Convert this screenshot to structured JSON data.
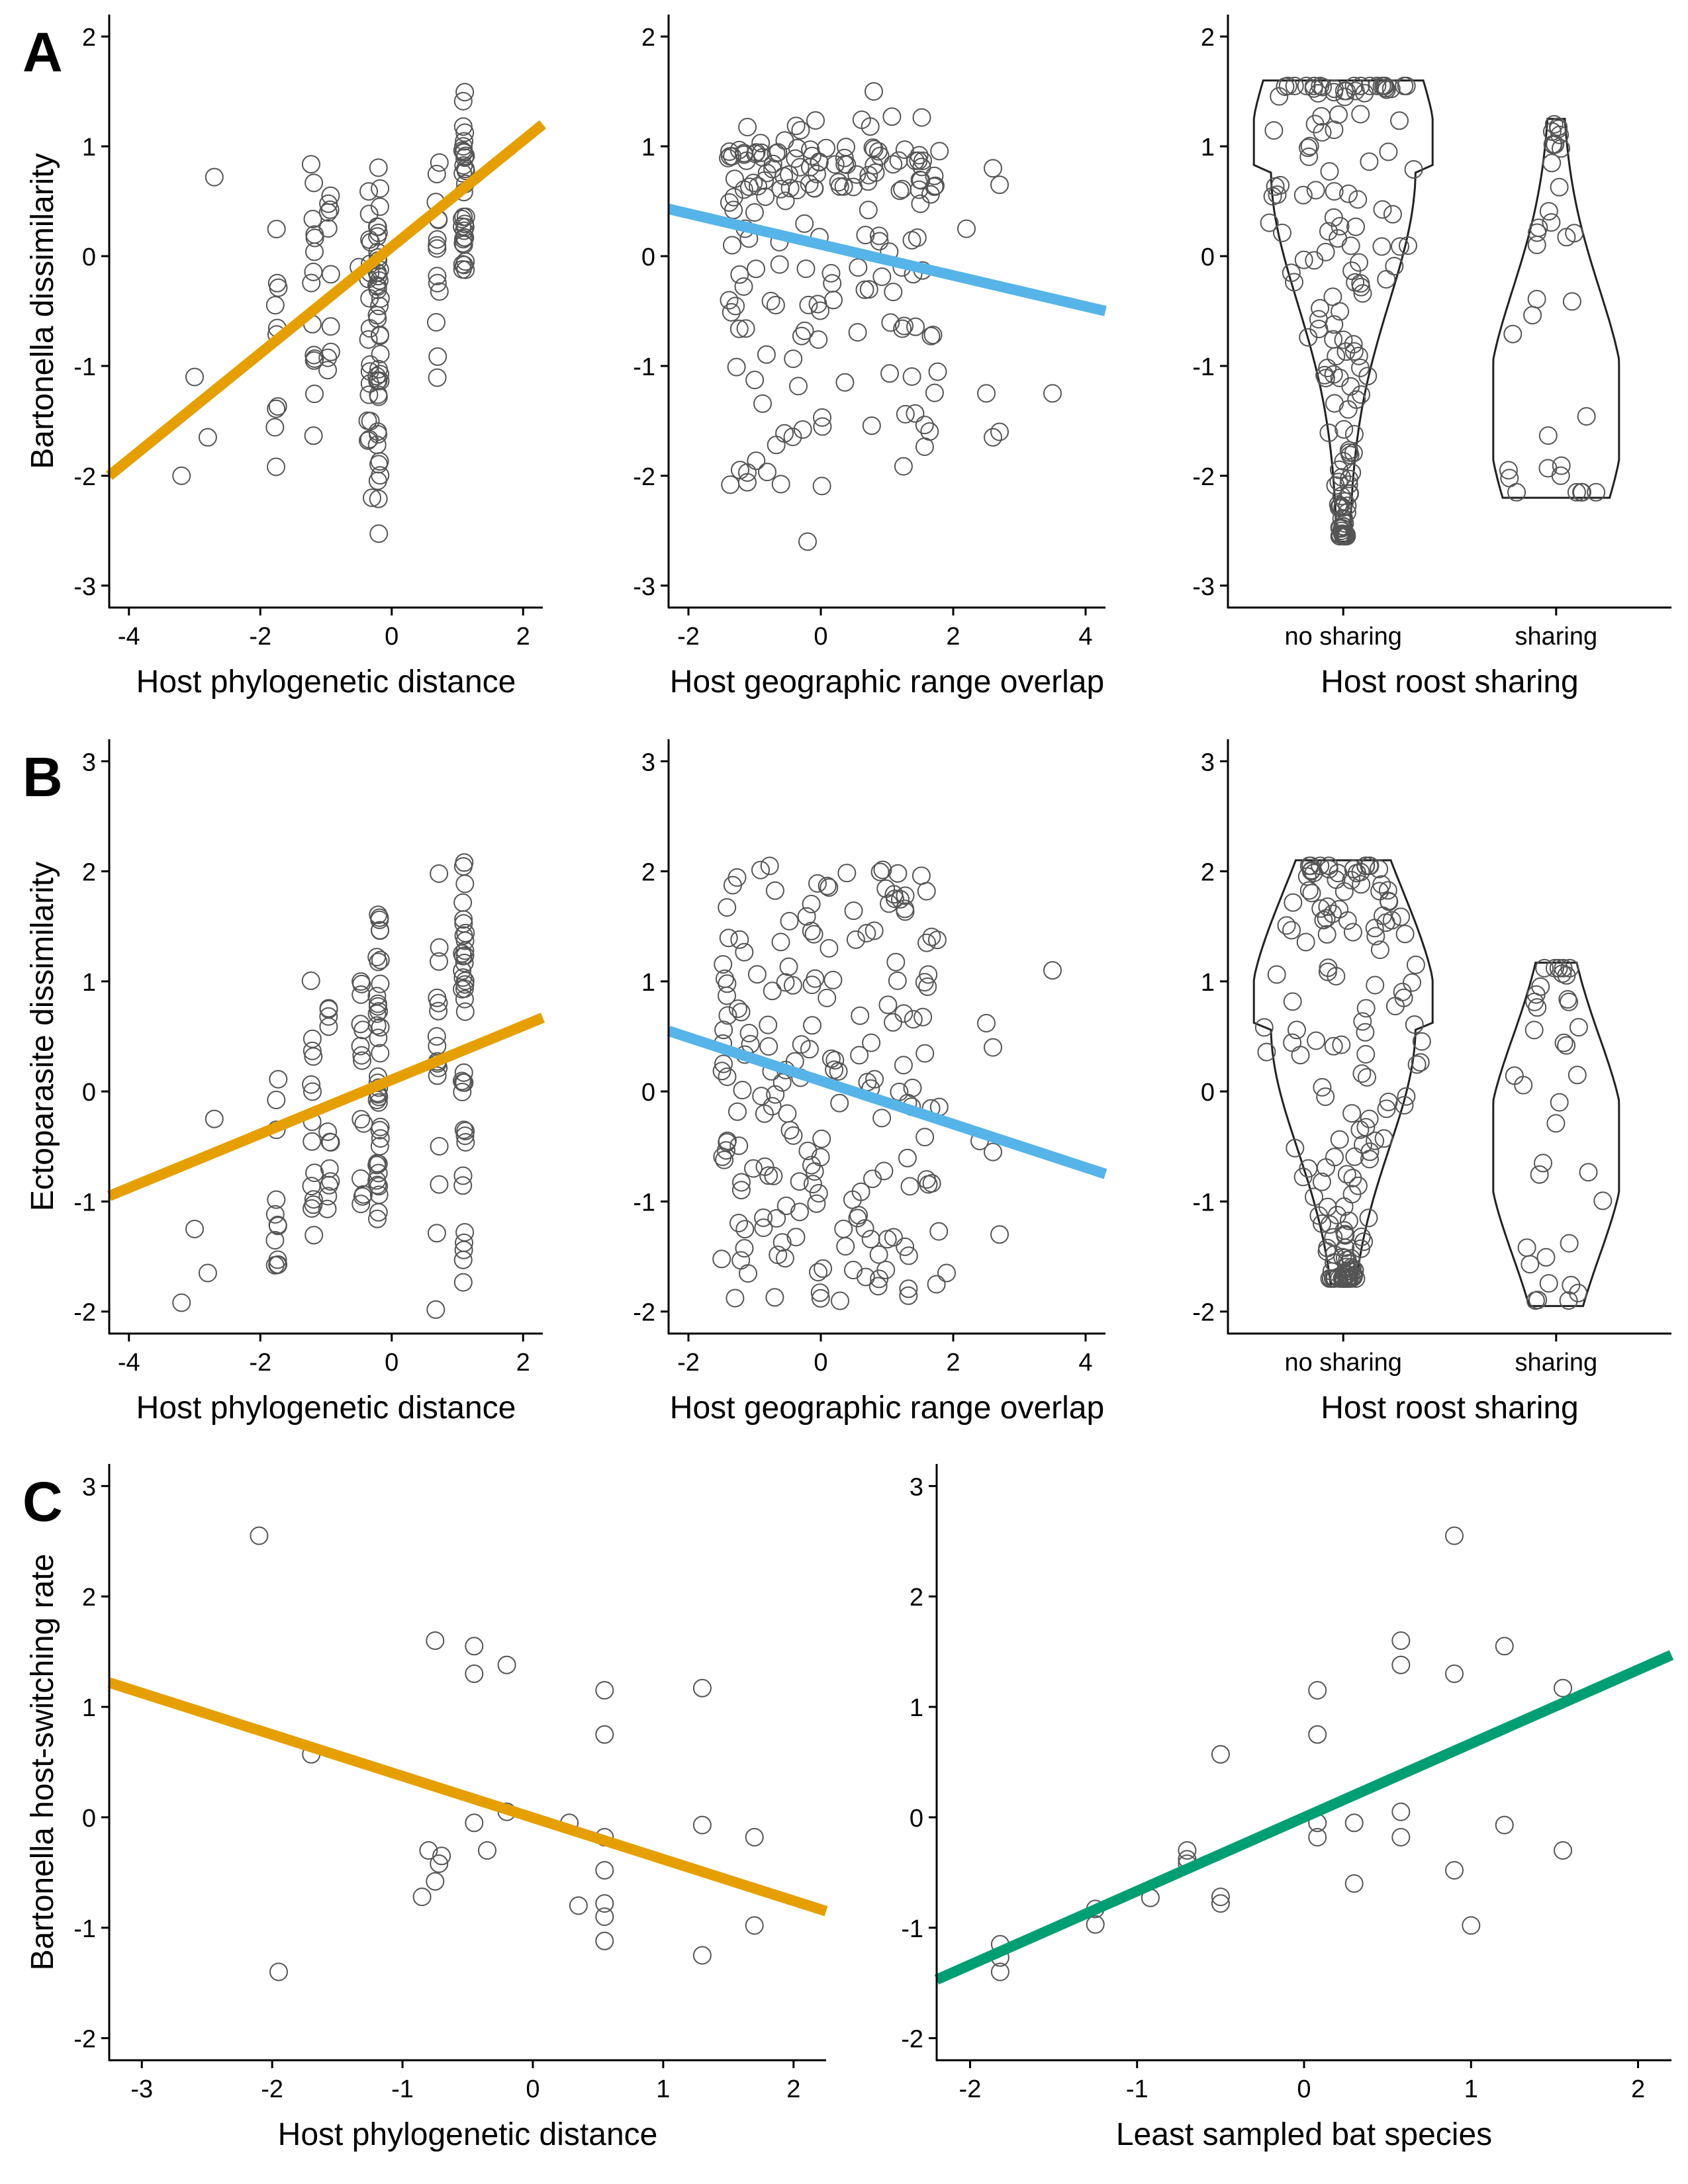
{
  "panels": {
    "A": "A",
    "B": "B",
    "C": "C"
  },
  "colors": {
    "phylo": "#E69F00",
    "geo": "#56B4E9",
    "sampling": "#009E73",
    "point": "#555555",
    "axis": "#000000"
  },
  "chart_data": [
    {
      "id": "A1",
      "type": "scatter",
      "xlabel": "Host phylogenetic distance",
      "ylabel": "Bartonella dissimilarity",
      "xlim": [
        -4.3,
        2.3
      ],
      "ylim": [
        -3.2,
        2.2
      ],
      "xticks": [
        -4,
        -2,
        0,
        2
      ],
      "yticks": [
        -3,
        -2,
        -1,
        0,
        1,
        2
      ],
      "trend": {
        "color": "phylo",
        "x": [
          -4.3,
          2.3
        ],
        "y": [
          -2.0,
          1.2
        ]
      },
      "columns": [
        {
          "x": -0.2,
          "n": 42,
          "ymin": -2.6,
          "ymax": 0.9
        },
        {
          "x": -0.35,
          "n": 18,
          "ymin": -1.7,
          "ymax": 0.6
        },
        {
          "x": 1.1,
          "n": 34,
          "ymin": -0.3,
          "ymax": 1.55
        },
        {
          "x": 0.7,
          "n": 14,
          "ymin": -1.2,
          "ymax": 1.0
        },
        {
          "x": -1.2,
          "n": 14,
          "ymin": -1.7,
          "ymax": 0.9
        },
        {
          "x": -0.95,
          "n": 10,
          "ymin": -1.4,
          "ymax": 0.95
        },
        {
          "x": -1.75,
          "n": 10,
          "ymin": -2.1,
          "ymax": 0.8
        }
      ],
      "points": [
        [
          -3.2,
          -2.0
        ],
        [
          -3.0,
          -1.1
        ],
        [
          -2.8,
          -1.65
        ],
        [
          -2.7,
          0.72
        ],
        [
          -0.3,
          -2.2
        ],
        [
          -0.5,
          -0.1
        ]
      ]
    },
    {
      "id": "A2",
      "type": "scatter",
      "xlabel": "Host geographic range overlap",
      "ylabel": "",
      "xlim": [
        -2.3,
        4.3
      ],
      "ylim": [
        -3.2,
        2.2
      ],
      "xticks": [
        -2,
        0,
        2,
        4
      ],
      "yticks": [
        -3,
        -2,
        -1,
        0,
        1,
        2
      ],
      "trend": {
        "color": "geo",
        "x": [
          -2.3,
          4.3
        ],
        "y": [
          0.43,
          -0.5
        ]
      },
      "cloud": {
        "n": 175,
        "xmin": -1.4,
        "xmax": 1.8,
        "ymin": -2.1,
        "ymax": 1.3,
        "dense_band": [
          0.6,
          1.0
        ]
      },
      "points": [
        [
          -0.2,
          -2.6
        ],
        [
          2.5,
          -1.25
        ],
        [
          2.6,
          -1.65
        ],
        [
          2.7,
          -1.6
        ],
        [
          3.5,
          -1.25
        ],
        [
          2.6,
          0.8
        ],
        [
          2.7,
          0.65
        ],
        [
          0.8,
          1.5
        ],
        [
          2.2,
          0.25
        ]
      ]
    },
    {
      "id": "A3",
      "type": "violin",
      "xlabel": "Host roost sharing",
      "ylabel": "",
      "categories": [
        "no sharing",
        "sharing"
      ],
      "ylim": [
        -3.2,
        2.2
      ],
      "yticks": [
        -3,
        -2,
        -1,
        0,
        1,
        2
      ],
      "groups": [
        {
          "name": "no sharing",
          "n": 160,
          "ymin": -2.6,
          "ymax": 1.6,
          "mode": 0.8
        },
        {
          "name": "sharing",
          "n": 34,
          "ymin": -2.2,
          "ymax": 1.25,
          "mode": -1.4
        }
      ]
    },
    {
      "id": "B1",
      "type": "scatter",
      "xlabel": "Host phylogenetic distance",
      "ylabel": "Ectoparasite dissimilarity",
      "xlim": [
        -4.3,
        2.3
      ],
      "ylim": [
        -2.2,
        3.2
      ],
      "xticks": [
        -4,
        -2,
        0,
        2
      ],
      "yticks": [
        -2,
        -1,
        0,
        1,
        2,
        3
      ],
      "trend": {
        "color": "phylo",
        "x": [
          -4.3,
          2.3
        ],
        "y": [
          -0.95,
          0.67
        ]
      },
      "columns": [
        {
          "x": -0.2,
          "n": 40,
          "ymin": -1.2,
          "ymax": 1.65
        },
        {
          "x": -0.45,
          "n": 14,
          "ymin": -1.2,
          "ymax": 1.0
        },
        {
          "x": 1.1,
          "n": 38,
          "ymin": -1.8,
          "ymax": 2.1
        },
        {
          "x": 0.7,
          "n": 16,
          "ymin": -2.0,
          "ymax": 2.0
        },
        {
          "x": -1.2,
          "n": 14,
          "ymin": -1.8,
          "ymax": 1.05
        },
        {
          "x": -0.95,
          "n": 12,
          "ymin": -1.3,
          "ymax": 0.85
        },
        {
          "x": -1.75,
          "n": 12,
          "ymin": -1.85,
          "ymax": 0.15
        }
      ],
      "points": [
        [
          -3.2,
          -1.92
        ],
        [
          -3.0,
          -1.25
        ],
        [
          -2.8,
          -1.65
        ],
        [
          -2.7,
          -0.25
        ]
      ]
    },
    {
      "id": "B2",
      "type": "scatter",
      "xlabel": "Host geographic range overlap",
      "ylabel": "",
      "xlim": [
        -2.3,
        4.3
      ],
      "ylim": [
        -2.2,
        3.2
      ],
      "xticks": [
        -2,
        0,
        2,
        4
      ],
      "yticks": [
        -2,
        -1,
        0,
        1,
        2,
        3
      ],
      "trend": {
        "color": "geo",
        "x": [
          -2.3,
          4.3
        ],
        "y": [
          0.55,
          -0.75
        ]
      },
      "cloud": {
        "n": 185,
        "xmin": -1.5,
        "xmax": 1.8,
        "ymin": -1.95,
        "ymax": 2.1
      },
      "points": [
        [
          2.4,
          -0.45
        ],
        [
          2.5,
          0.62
        ],
        [
          2.6,
          0.4
        ],
        [
          2.6,
          -0.55
        ],
        [
          2.7,
          -1.3
        ],
        [
          3.5,
          1.1
        ],
        [
          1.9,
          -1.65
        ],
        [
          1.6,
          1.35
        ]
      ]
    },
    {
      "id": "B3",
      "type": "violin",
      "xlabel": "Host roost sharing",
      "ylabel": "",
      "categories": [
        "no sharing",
        "sharing"
      ],
      "ylim": [
        -2.2,
        3.2
      ],
      "yticks": [
        -2,
        -1,
        0,
        1,
        2,
        3
      ],
      "groups": [
        {
          "name": "no sharing",
          "n": 165,
          "ymin": -1.75,
          "ymax": 2.1,
          "mode": 0.6
        },
        {
          "name": "sharing",
          "n": 36,
          "ymin": -1.95,
          "ymax": 1.17,
          "mode": -0.5
        }
      ]
    },
    {
      "id": "C1",
      "type": "scatter",
      "xlabel": "Host phylogenetic distance",
      "ylabel": "Bartonella host-switching rate",
      "xlim": [
        -3.25,
        2.25
      ],
      "ylim": [
        -2.2,
        3.2
      ],
      "xticks": [
        -3,
        -2,
        -1,
        0,
        1,
        2
      ],
      "yticks": [
        -2,
        -1,
        0,
        1,
        2,
        3
      ],
      "trend": {
        "color": "phylo",
        "x": [
          -3.25,
          2.25
        ],
        "y": [
          1.22,
          -0.85
        ]
      },
      "points": [
        [
          -2.1,
          2.55
        ],
        [
          -1.95,
          -1.4
        ],
        [
          -1.7,
          0.57
        ],
        [
          -0.85,
          -0.72
        ],
        [
          -0.8,
          -0.3
        ],
        [
          -0.75,
          -0.58
        ],
        [
          -0.75,
          1.6
        ],
        [
          -0.7,
          -0.35
        ],
        [
          -0.72,
          -0.42
        ],
        [
          -0.45,
          1.55
        ],
        [
          -0.45,
          1.3
        ],
        [
          -0.45,
          -0.05
        ],
        [
          -0.35,
          -0.3
        ],
        [
          -0.2,
          0.05
        ],
        [
          -0.2,
          1.38
        ],
        [
          0.28,
          -0.05
        ],
        [
          0.35,
          -0.8
        ],
        [
          0.55,
          1.15
        ],
        [
          0.55,
          0.75
        ],
        [
          0.55,
          -0.18
        ],
        [
          0.55,
          -0.48
        ],
        [
          0.55,
          -0.78
        ],
        [
          0.55,
          -0.9
        ],
        [
          0.55,
          -1.12
        ],
        [
          1.3,
          1.17
        ],
        [
          1.3,
          -0.07
        ],
        [
          1.3,
          -1.25
        ],
        [
          1.7,
          -0.18
        ],
        [
          1.7,
          -0.98
        ]
      ]
    },
    {
      "id": "C2",
      "type": "scatter",
      "xlabel": "Least sampled bat species",
      "ylabel": "",
      "xlim": [
        -2.2,
        2.2
      ],
      "ylim": [
        -2.2,
        3.2
      ],
      "xticks": [
        -2,
        -1,
        0,
        1,
        2
      ],
      "yticks": [
        -2,
        -1,
        0,
        1,
        2,
        3
      ],
      "trend": {
        "color": "sampling",
        "x": [
          -2.2,
          2.2
        ],
        "y": [
          -1.47,
          1.47
        ]
      },
      "points": [
        [
          -1.82,
          -1.4
        ],
        [
          -1.82,
          -1.15
        ],
        [
          -1.82,
          -1.27
        ],
        [
          -1.25,
          -0.97
        ],
        [
          -1.25,
          -0.83
        ],
        [
          -0.92,
          -0.73
        ],
        [
          -0.7,
          -0.3
        ],
        [
          -0.7,
          -0.38
        ],
        [
          -0.7,
          -0.42
        ],
        [
          -0.5,
          -0.78
        ],
        [
          -0.5,
          -0.72
        ],
        [
          -0.5,
          0.57
        ],
        [
          0.08,
          -0.05
        ],
        [
          0.08,
          -0.18
        ],
        [
          0.08,
          0.75
        ],
        [
          0.08,
          1.15
        ],
        [
          0.3,
          -0.05
        ],
        [
          0.3,
          -0.6
        ],
        [
          0.58,
          0.05
        ],
        [
          0.58,
          -0.18
        ],
        [
          0.58,
          1.38
        ],
        [
          0.58,
          1.6
        ],
        [
          0.9,
          2.55
        ],
        [
          0.9,
          1.3
        ],
        [
          0.9,
          -0.48
        ],
        [
          1.0,
          -0.98
        ],
        [
          1.2,
          1.55
        ],
        [
          1.2,
          -0.07
        ],
        [
          1.55,
          1.17
        ],
        [
          1.55,
          -0.3
        ]
      ]
    }
  ]
}
